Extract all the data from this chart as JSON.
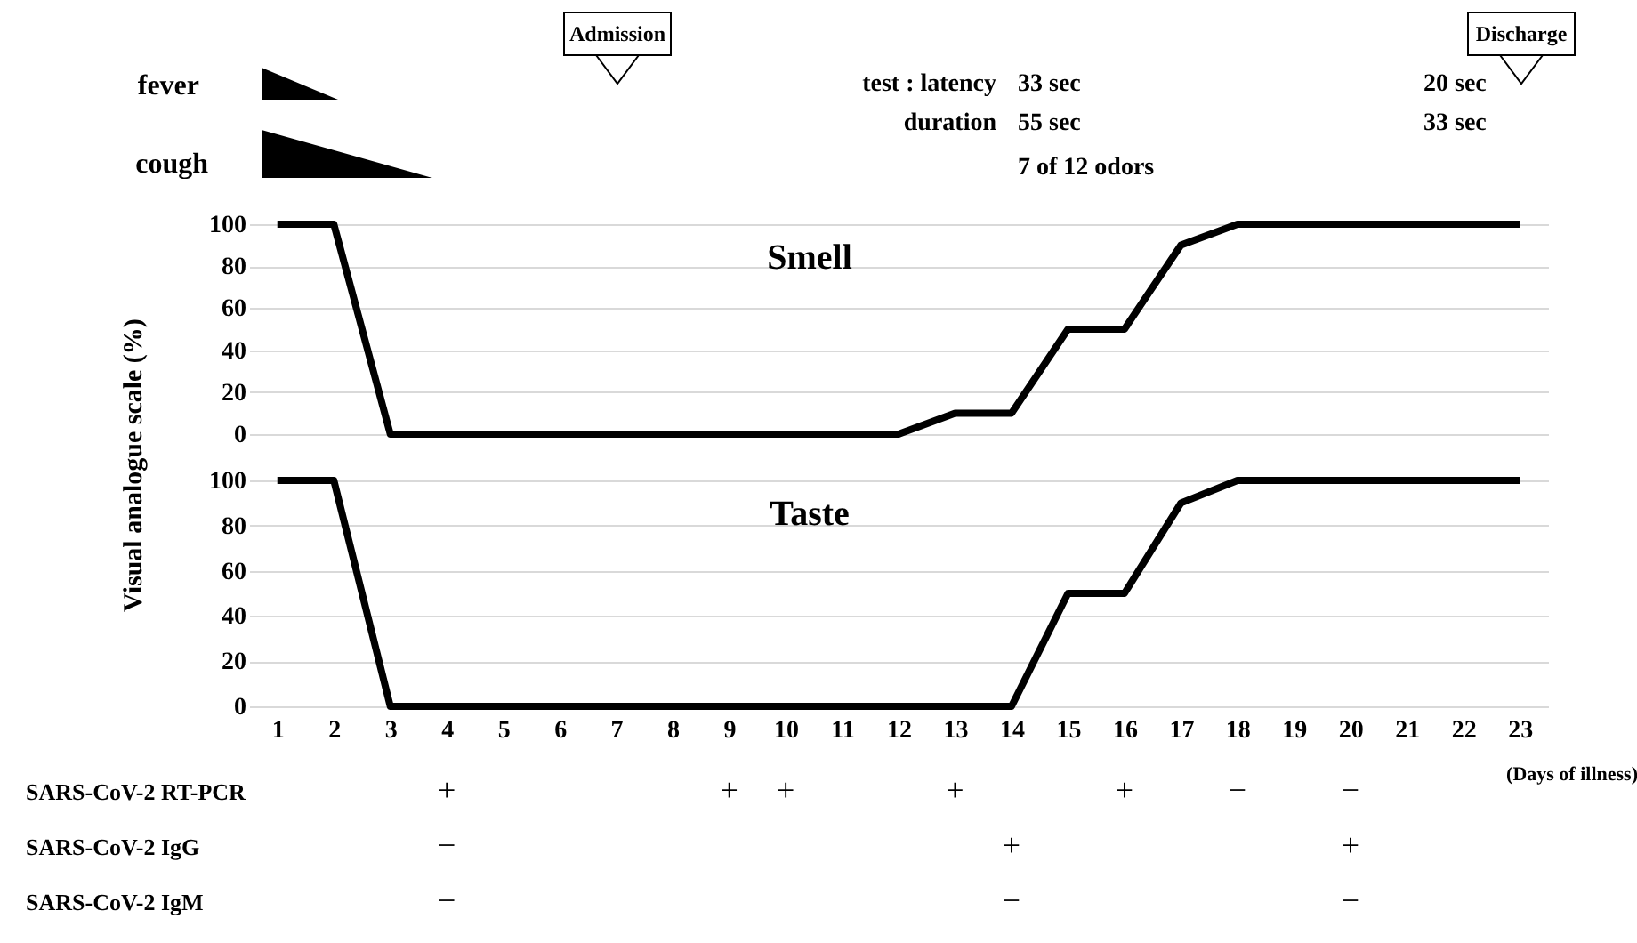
{
  "chart_data": [
    {
      "type": "line",
      "title": "Smell",
      "ylabel": "Visual analogue scale (%)",
      "x": [
        1,
        2,
        3,
        4,
        5,
        6,
        7,
        8,
        9,
        10,
        11,
        12,
        13,
        14,
        15,
        16,
        17,
        18,
        19,
        20,
        21,
        22,
        23
      ],
      "series": [
        {
          "color": "#000000",
          "values": [
            100,
            100,
            0,
            0,
            0,
            0,
            0,
            0,
            0,
            0,
            0,
            0,
            10,
            10,
            50,
            50,
            90,
            100,
            100,
            100,
            100,
            100,
            100
          ]
        }
      ],
      "xlim": [
        0.5,
        23.5
      ],
      "ylim": [
        0,
        100
      ],
      "yticks": [
        0,
        20,
        40,
        60,
        80,
        100
      ],
      "grid": "y",
      "tick_labels": "y",
      "annotations": [
        "fever",
        "cough",
        "Admission",
        "Discharge",
        "test : latency",
        "33 sec",
        "20 sec",
        "duration",
        "55 sec",
        "33 sec",
        "7 of 12 odors"
      ]
    },
    {
      "type": "line",
      "title": "Taste",
      "xlabel": "(Days of illness)",
      "x": [
        1,
        2,
        3,
        4,
        5,
        6,
        7,
        8,
        9,
        10,
        11,
        12,
        13,
        14,
        15,
        16,
        17,
        18,
        19,
        20,
        21,
        22,
        23
      ],
      "series": [
        {
          "color": "#000000",
          "values": [
            100,
            100,
            0,
            0,
            0,
            0,
            0,
            0,
            0,
            0,
            0,
            0,
            0,
            0,
            50,
            50,
            90,
            100,
            100,
            100,
            100,
            100,
            100
          ]
        }
      ],
      "xlim": [
        0.5,
        23.5
      ],
      "xticks": [
        1,
        2,
        3,
        4,
        5,
        6,
        7,
        8,
        9,
        10,
        11,
        12,
        13,
        14,
        15,
        16,
        17,
        18,
        19,
        20,
        21,
        22,
        23
      ],
      "ylim": [
        0,
        100
      ],
      "yticks": [
        0,
        20,
        40,
        60,
        80,
        100
      ],
      "grid": "y"
    },
    {
      "type": "other",
      "categories": [
        null,
        null,
        null,
        null,
        null,
        null,
        null,
        null,
        null,
        null,
        null,
        null,
        null,
        null,
        null,
        null,
        null,
        null,
        null,
        null,
        null,
        null,
        null
      ],
      "y_categories": [
        "SARS-CoV-2 RT-PCR",
        "SARS-CoV-2 IgG",
        "SARS-CoV-2 IgM"
      ],
      "cell_labels": [
        [
          null,
          null,
          null,
          "+",
          null,
          null,
          null,
          null,
          "+",
          "+",
          null,
          null,
          "+",
          null,
          null,
          "+",
          null,
          "−",
          null,
          "−",
          null,
          null,
          null
        ],
        [
          null,
          null,
          null,
          "−",
          null,
          null,
          null,
          null,
          null,
          null,
          null,
          null,
          null,
          "+",
          null,
          null,
          null,
          null,
          null,
          "+",
          null,
          null,
          null
        ],
        [
          null,
          null,
          null,
          "−",
          null,
          null,
          null,
          null,
          null,
          null,
          null,
          null,
          null,
          "−",
          null,
          null,
          null,
          null,
          null,
          "−",
          null,
          null,
          null
        ]
      ]
    }
  ]
}
